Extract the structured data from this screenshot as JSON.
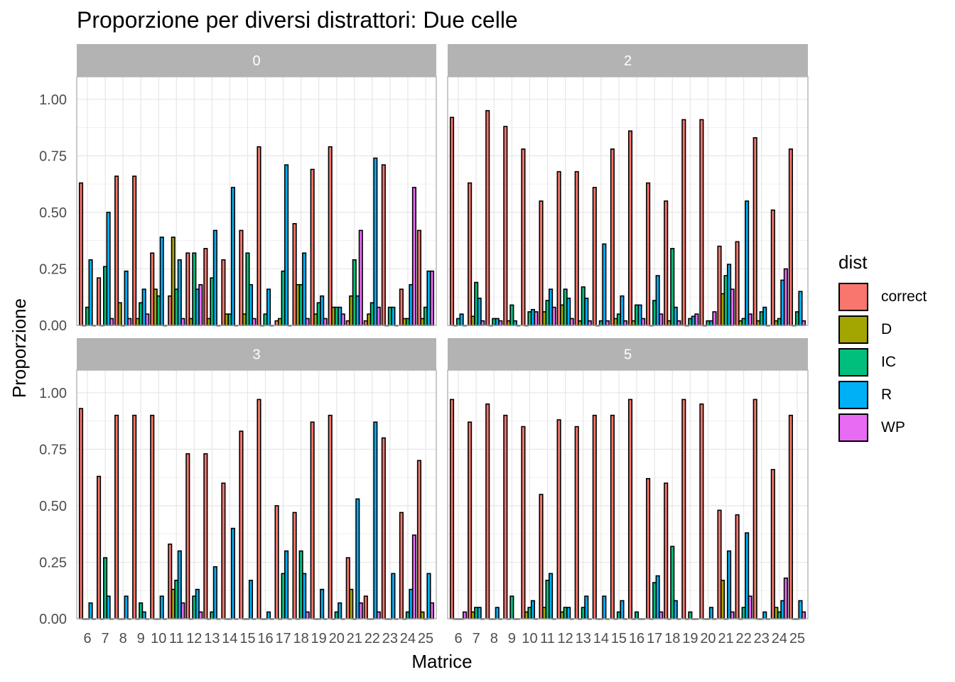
{
  "chart_data": {
    "type": "bar",
    "title": "Proporzione per diversi distrattori: Due celle",
    "xlabel": "Matrice",
    "ylabel": "Proporzione",
    "ylim": [
      0,
      1.1
    ],
    "yticks": [
      "0.00",
      "0.25",
      "0.50",
      "0.75",
      "1.00"
    ],
    "categories": [
      "6",
      "7",
      "8",
      "9",
      "10",
      "11",
      "12",
      "13",
      "14",
      "15",
      "16",
      "17",
      "18",
      "19",
      "20",
      "21",
      "22",
      "23",
      "24",
      "25"
    ],
    "legend": {
      "title": "dist",
      "position": "right"
    },
    "series_names": [
      "correct",
      "D",
      "IC",
      "R",
      "WP"
    ],
    "colors": {
      "correct": "#F8766D",
      "D": "#A3A500",
      "IC": "#00BF7D",
      "R": "#00B0F6",
      "WP": "#E76BF3"
    },
    "grid": true,
    "facets": [
      {
        "label": "0",
        "values": {
          "correct": [
            0.63,
            0.21,
            0.66,
            0.66,
            0.32,
            0.13,
            0.32,
            0.34,
            0.29,
            0.42,
            0.79,
            0.02,
            0.45,
            0.69,
            0.79,
            0.02,
            0.02,
            0.71,
            0.16,
            0.42
          ],
          "D": [
            0.0,
            0.0,
            0.1,
            0.03,
            0.16,
            0.39,
            0.03,
            0.03,
            0.05,
            0.05,
            0.0,
            0.03,
            0.18,
            0.05,
            0.08,
            0.13,
            0.05,
            0.0,
            0.03,
            0.03
          ],
          "IC": [
            0.08,
            0.26,
            0.0,
            0.1,
            0.13,
            0.16,
            0.32,
            0.21,
            0.05,
            0.32,
            0.05,
            0.24,
            0.18,
            0.1,
            0.08,
            0.29,
            0.1,
            0.08,
            0.03,
            0.08
          ],
          "R": [
            0.29,
            0.5,
            0.24,
            0.16,
            0.39,
            0.29,
            0.16,
            0.42,
            0.61,
            0.18,
            0.16,
            0.71,
            0.32,
            0.13,
            0.08,
            0.13,
            0.74,
            0.08,
            0.18,
            0.24
          ],
          "WP": [
            0.0,
            0.03,
            0.03,
            0.05,
            0.0,
            0.03,
            0.18,
            0.0,
            0.0,
            0.03,
            0.0,
            0.0,
            0.03,
            0.03,
            0.05,
            0.42,
            0.08,
            0.0,
            0.61,
            0.24
          ]
        }
      },
      {
        "label": "2",
        "values": {
          "correct": [
            0.92,
            0.63,
            0.95,
            0.88,
            0.78,
            0.55,
            0.68,
            0.68,
            0.61,
            0.78,
            0.86,
            0.63,
            0.55,
            0.91,
            0.91,
            0.35,
            0.37,
            0.83,
            0.51,
            0.78
          ],
          "D": [
            0.0,
            0.04,
            0.0,
            0.02,
            0.0,
            0.06,
            0.09,
            0.02,
            0.0,
            0.03,
            0.02,
            0.0,
            0.02,
            0.0,
            0.0,
            0.14,
            0.02,
            0.02,
            0.02,
            0.0
          ],
          "IC": [
            0.03,
            0.19,
            0.03,
            0.09,
            0.06,
            0.11,
            0.16,
            0.17,
            0.02,
            0.05,
            0.09,
            0.11,
            0.34,
            0.03,
            0.02,
            0.22,
            0.03,
            0.06,
            0.03,
            0.06
          ],
          "R": [
            0.05,
            0.12,
            0.03,
            0.02,
            0.07,
            0.16,
            0.12,
            0.12,
            0.36,
            0.13,
            0.09,
            0.22,
            0.08,
            0.04,
            0.02,
            0.27,
            0.55,
            0.08,
            0.2,
            0.15
          ],
          "WP": [
            0.0,
            0.02,
            0.02,
            0.0,
            0.06,
            0.08,
            0.03,
            0.02,
            0.02,
            0.02,
            0.03,
            0.05,
            0.02,
            0.05,
            0.06,
            0.16,
            0.05,
            0.0,
            0.25,
            0.02
          ]
        }
      },
      {
        "label": "3",
        "values": {
          "correct": [
            0.93,
            0.63,
            0.9,
            0.9,
            0.9,
            0.33,
            0.73,
            0.73,
            0.6,
            0.83,
            0.97,
            0.5,
            0.47,
            0.87,
            0.9,
            0.27,
            0.1,
            0.8,
            0.47,
            0.7
          ],
          "D": [
            0.0,
            0.0,
            0.0,
            0.0,
            0.0,
            0.13,
            0.0,
            0.0,
            0.0,
            0.0,
            0.0,
            0.0,
            0.0,
            0.0,
            0.0,
            0.13,
            0.0,
            0.0,
            0.0,
            0.03
          ],
          "IC": [
            0.0,
            0.27,
            0.0,
            0.07,
            0.0,
            0.17,
            0.1,
            0.03,
            0.0,
            0.0,
            0.0,
            0.2,
            0.3,
            0.0,
            0.03,
            0.0,
            0.0,
            0.0,
            0.03,
            0.0
          ],
          "R": [
            0.07,
            0.1,
            0.1,
            0.03,
            0.1,
            0.3,
            0.13,
            0.23,
            0.4,
            0.17,
            0.03,
            0.3,
            0.2,
            0.13,
            0.07,
            0.53,
            0.87,
            0.2,
            0.13,
            0.2
          ],
          "WP": [
            0.0,
            0.0,
            0.0,
            0.0,
            0.0,
            0.07,
            0.03,
            0.0,
            0.0,
            0.0,
            0.0,
            0.0,
            0.03,
            0.0,
            0.0,
            0.07,
            0.03,
            0.0,
            0.37,
            0.07
          ]
        }
      },
      {
        "label": "5",
        "values": {
          "correct": [
            0.97,
            0.87,
            0.95,
            0.9,
            0.85,
            0.55,
            0.88,
            0.85,
            0.9,
            0.9,
            0.97,
            0.62,
            0.6,
            0.97,
            0.95,
            0.48,
            0.46,
            0.97,
            0.66,
            0.9
          ],
          "D": [
            0.0,
            0.03,
            0.0,
            0.0,
            0.03,
            0.05,
            0.03,
            0.0,
            0.0,
            0.0,
            0.0,
            0.0,
            0.0,
            0.0,
            0.0,
            0.17,
            0.0,
            0.0,
            0.05,
            0.0
          ],
          "IC": [
            0.0,
            0.05,
            0.0,
            0.1,
            0.05,
            0.17,
            0.05,
            0.05,
            0.0,
            0.03,
            0.03,
            0.16,
            0.32,
            0.03,
            0.0,
            0.0,
            0.05,
            0.0,
            0.03,
            0.0
          ],
          "R": [
            0.0,
            0.05,
            0.05,
            0.0,
            0.08,
            0.2,
            0.05,
            0.1,
            0.1,
            0.08,
            0.0,
            0.19,
            0.08,
            0.0,
            0.05,
            0.3,
            0.38,
            0.03,
            0.08,
            0.08
          ],
          "WP": [
            0.03,
            0.0,
            0.0,
            0.0,
            0.0,
            0.0,
            0.0,
            0.0,
            0.0,
            0.0,
            0.0,
            0.03,
            0.0,
            0.0,
            0.0,
            0.03,
            0.1,
            0.0,
            0.18,
            0.03
          ]
        }
      }
    ]
  }
}
